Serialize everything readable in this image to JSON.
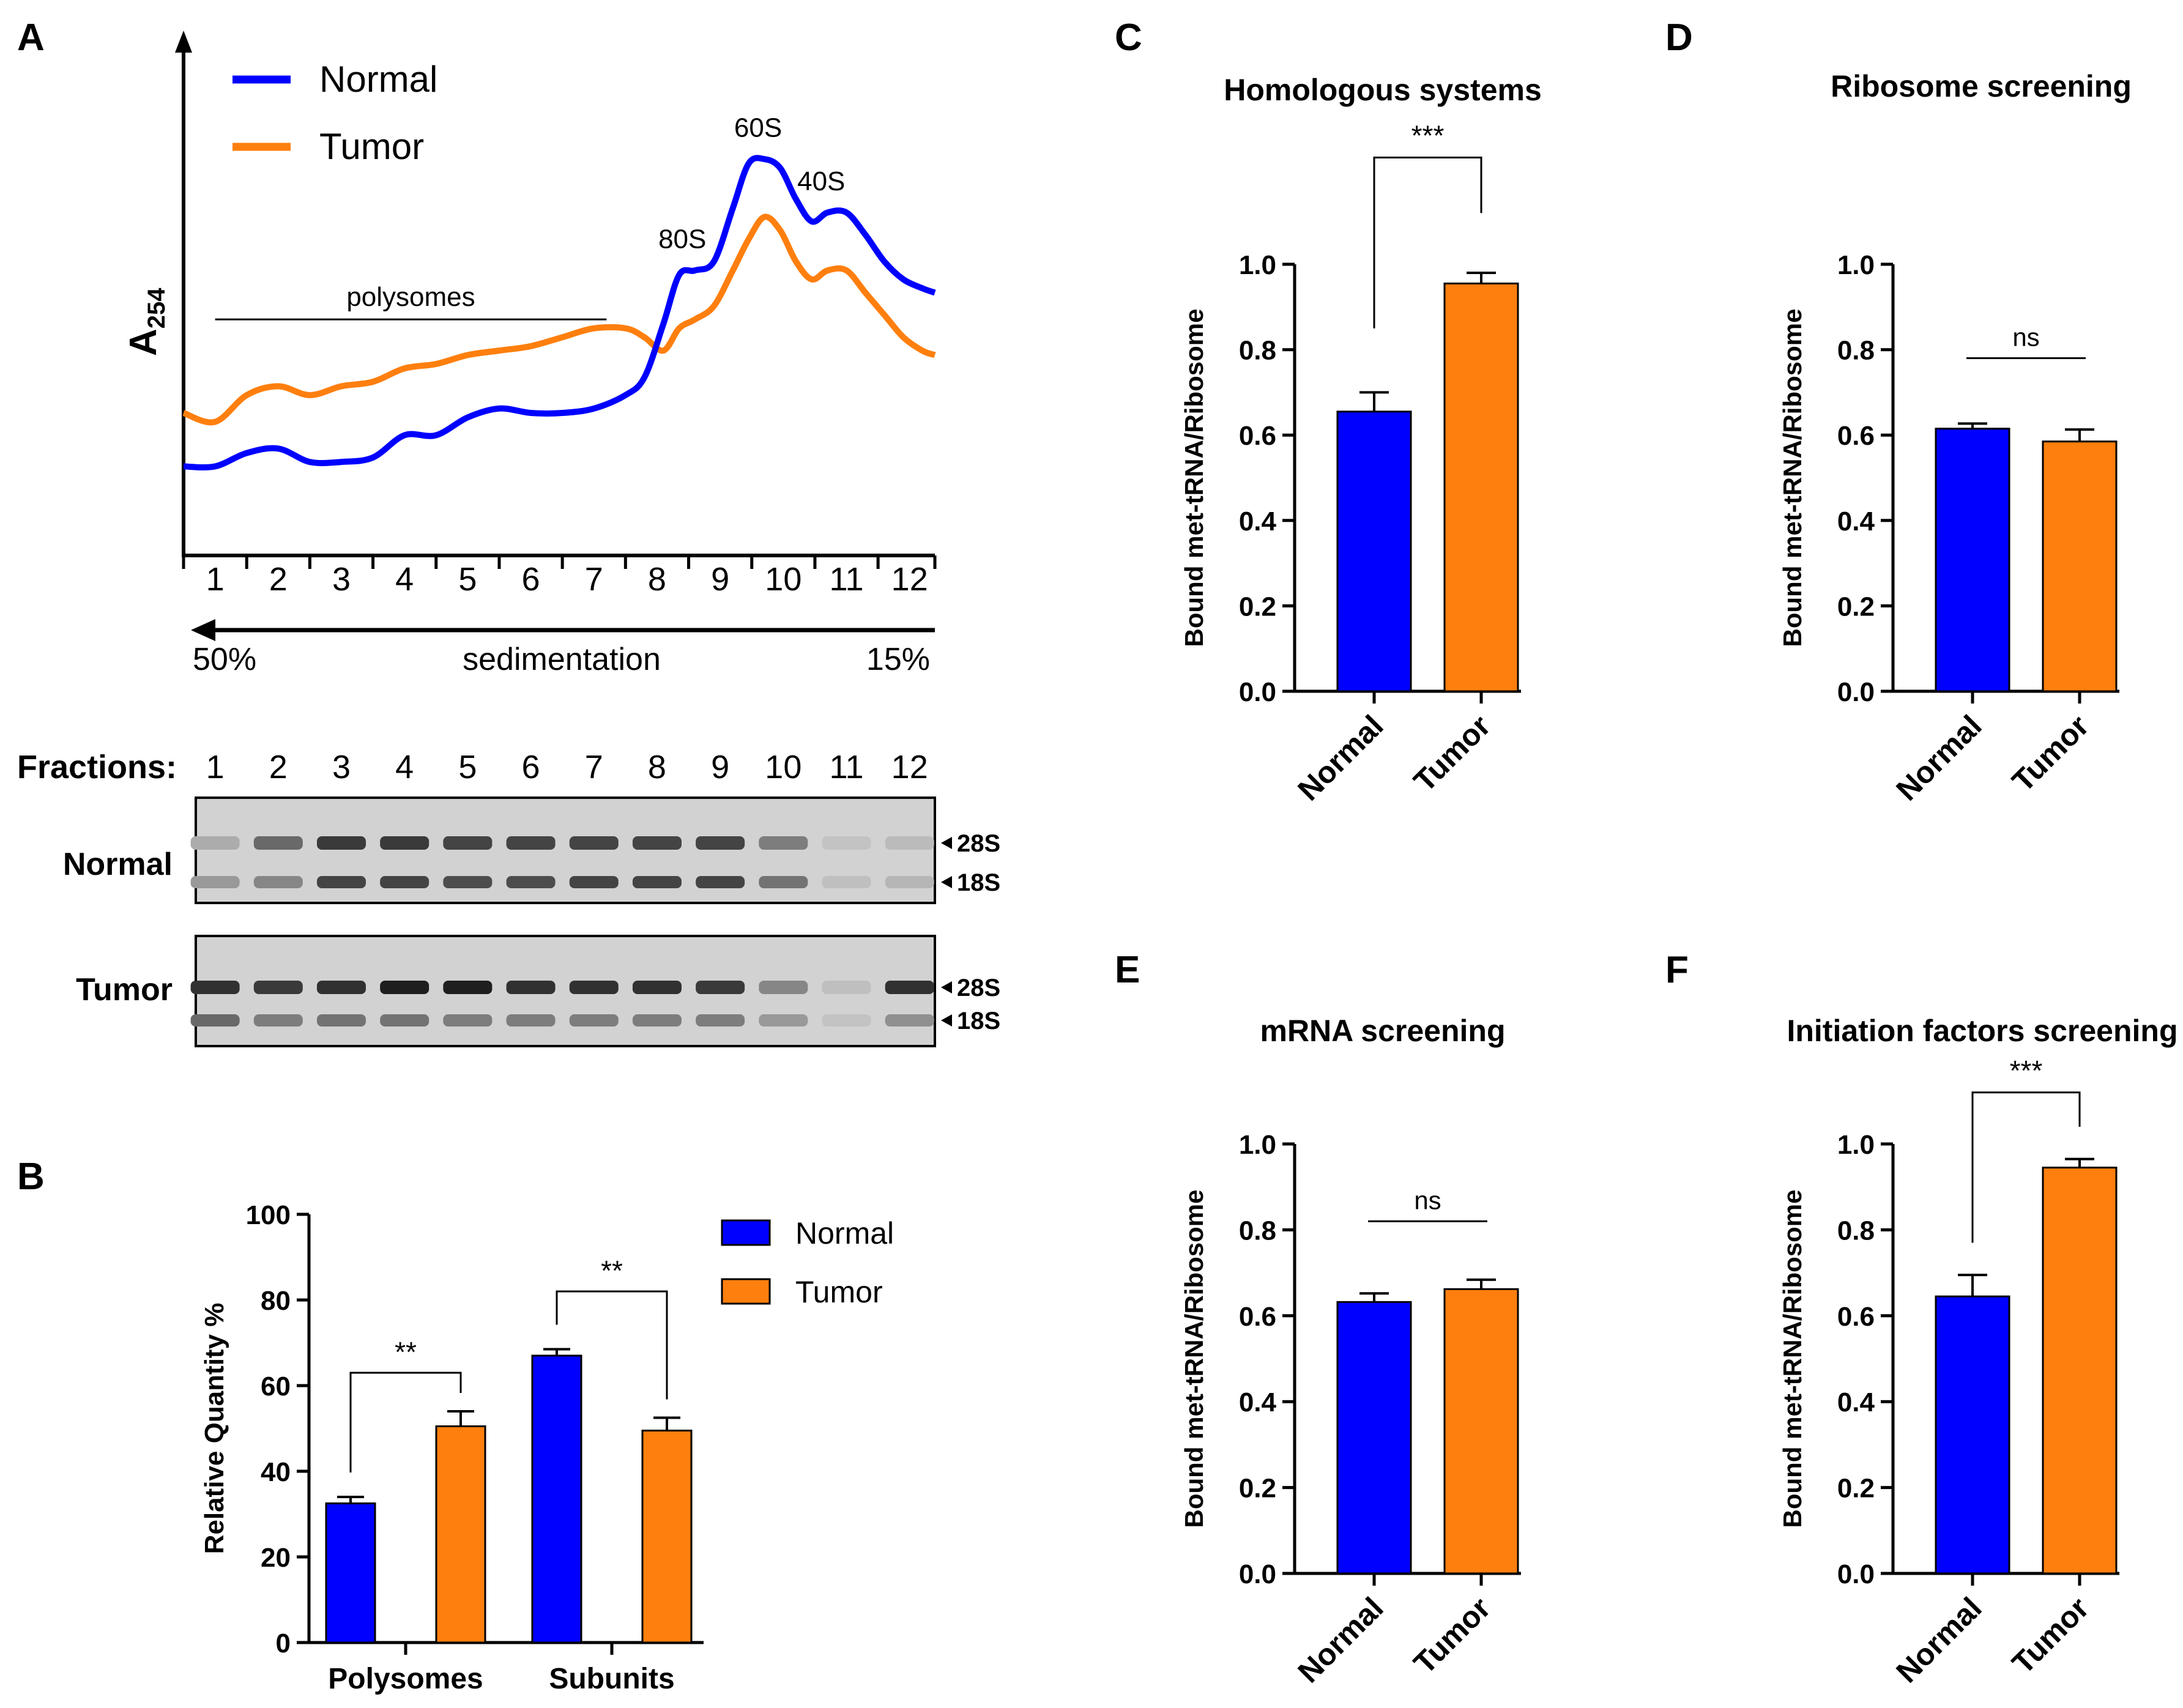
{
  "panel_labels": [
    "A",
    "B",
    "C",
    "D",
    "E",
    "F"
  ],
  "colors": {
    "normal": "#0000ff",
    "tumor": "#ff7f0e",
    "axis": "#000000"
  },
  "chart_data": [
    {
      "id": "A",
      "type": "line",
      "ylabel_main": "A",
      "ylabel_sub": "254",
      "legend": [
        "Normal",
        "Tumor"
      ],
      "legend_position": "top-left",
      "x_ticks": [
        "1",
        "2",
        "3",
        "4",
        "5",
        "6",
        "7",
        "8",
        "9",
        "10",
        "11",
        "12"
      ],
      "xlim": [
        0.5,
        12.4
      ],
      "ylim": [
        0,
        100
      ],
      "series": [
        {
          "name": "Normal",
          "x": [
            0.5,
            1.0,
            1.5,
            2.0,
            2.5,
            3.0,
            3.5,
            4.0,
            4.5,
            5.0,
            5.5,
            6.0,
            6.5,
            7.0,
            7.5,
            7.8,
            8.1,
            8.35,
            8.6,
            8.9,
            9.2,
            9.45,
            9.7,
            9.95,
            10.2,
            10.45,
            10.7,
            11.0,
            11.3,
            11.6,
            11.9,
            12.2,
            12.4
          ],
          "y": [
            20,
            20,
            23,
            24,
            21,
            21,
            22,
            27,
            27,
            31,
            33,
            32,
            32,
            33,
            36,
            40,
            52,
            63,
            64,
            66,
            78,
            88,
            89,
            87,
            80,
            75,
            77,
            77,
            72,
            66,
            62,
            60,
            59
          ]
        },
        {
          "name": "Tumor",
          "x": [
            0.5,
            1.0,
            1.5,
            2.0,
            2.5,
            3.0,
            3.5,
            4.0,
            4.5,
            5.0,
            5.5,
            6.0,
            6.5,
            7.0,
            7.5,
            7.8,
            8.1,
            8.35,
            8.6,
            8.9,
            9.2,
            9.45,
            9.7,
            9.95,
            10.2,
            10.45,
            10.7,
            11.0,
            11.3,
            11.6,
            11.9,
            12.2,
            12.4
          ],
          "y": [
            32,
            30,
            36,
            38,
            36,
            38,
            39,
            42,
            43,
            45,
            46,
            47,
            49,
            51,
            51,
            49,
            46,
            51,
            53,
            56,
            64,
            71,
            76,
            73,
            66,
            62,
            64,
            64,
            59,
            54,
            49,
            46,
            45
          ]
        }
      ],
      "annotations": [
        {
          "text": "polysomes",
          "x_from": 1.0,
          "x_to": 7.2,
          "y": 53
        },
        {
          "text": "80S",
          "x": 8.4,
          "y": 69
        },
        {
          "text": "60S",
          "x": 9.6,
          "y": 94
        },
        {
          "text": "40S",
          "x": 10.6,
          "y": 82
        }
      ],
      "sedimentation": {
        "left": "50%",
        "center": "sedimentation",
        "right": "15%"
      }
    },
    {
      "id": "A-gel",
      "type": "gel",
      "fractions_label": "Fractions:",
      "fractions": [
        "1",
        "2",
        "3",
        "4",
        "5",
        "6",
        "7",
        "8",
        "9",
        "10",
        "11",
        "12"
      ],
      "rows": [
        {
          "name": "Normal",
          "band_labels": [
            "28S",
            "18S"
          ],
          "intensity_28s": [
            0.2,
            0.55,
            0.8,
            0.8,
            0.75,
            0.75,
            0.75,
            0.75,
            0.75,
            0.45,
            0.08,
            0.12
          ],
          "intensity_18s": [
            0.3,
            0.4,
            0.75,
            0.75,
            0.7,
            0.7,
            0.75,
            0.75,
            0.75,
            0.5,
            0.1,
            0.15
          ]
        },
        {
          "name": "Tumor",
          "band_labels": [
            "28S",
            "18S"
          ],
          "intensity_28s": [
            0.85,
            0.8,
            0.85,
            0.95,
            0.95,
            0.85,
            0.85,
            0.85,
            0.8,
            0.4,
            0.1,
            0.85
          ],
          "intensity_18s": [
            0.55,
            0.45,
            0.5,
            0.5,
            0.45,
            0.45,
            0.45,
            0.45,
            0.45,
            0.3,
            0.08,
            0.35
          ]
        }
      ]
    },
    {
      "id": "B",
      "type": "bar",
      "ylabel": "Relative Quantity %",
      "ylim": [
        0,
        100
      ],
      "yticks": [
        "0",
        "20",
        "40",
        "60",
        "80",
        "100"
      ],
      "categories": [
        "Polysomes",
        "Subunits"
      ],
      "series": [
        {
          "name": "Normal",
          "values": [
            32.5,
            67
          ],
          "errors": [
            1.5,
            1.5
          ]
        },
        {
          "name": "Tumor",
          "values": [
            50.5,
            49.5
          ],
          "errors": [
            3.5,
            3.0
          ]
        }
      ],
      "legend": [
        "Normal",
        "Tumor"
      ],
      "legend_position": "top-right",
      "significance": [
        {
          "category": "Polysomes",
          "text": "**",
          "y": 63
        },
        {
          "category": "Subunits",
          "text": "**",
          "y": 82
        }
      ]
    },
    {
      "id": "C",
      "type": "bar",
      "title": "Homologous systems",
      "ylabel": "Bound met-tRNA/Ribosome",
      "ylim": [
        0,
        1.0
      ],
      "yticks": [
        "0.0",
        "0.2",
        "0.4",
        "0.6",
        "0.8",
        "1.0"
      ],
      "categories": [
        "Normal",
        "Tumor"
      ],
      "values": [
        0.655,
        0.955
      ],
      "errors": [
        0.045,
        0.025
      ],
      "significance": {
        "text": "***",
        "y": 1.25,
        "drop": [
          0.85,
          1.12
        ]
      }
    },
    {
      "id": "D",
      "type": "bar",
      "title": "Ribosome screening",
      "ylabel": "Bound met-tRNA/Ribosome",
      "ylim": [
        0,
        1.0
      ],
      "yticks": [
        "0.0",
        "0.2",
        "0.4",
        "0.6",
        "0.8",
        "1.0"
      ],
      "categories": [
        "Normal",
        "Tumor"
      ],
      "values": [
        0.615,
        0.585
      ],
      "errors": [
        0.012,
        0.028
      ],
      "significance": {
        "text": "ns",
        "y": 0.78
      }
    },
    {
      "id": "E",
      "type": "bar",
      "title": "mRNA screening",
      "ylabel": "Bound met-tRNA/Ribosome",
      "ylim": [
        0,
        1.0
      ],
      "yticks": [
        "0.0",
        "0.2",
        "0.4",
        "0.6",
        "0.8",
        "1.0"
      ],
      "categories": [
        "Normal",
        "Tumor"
      ],
      "values": [
        0.632,
        0.662
      ],
      "errors": [
        0.02,
        0.022
      ],
      "significance": {
        "text": "ns",
        "y": 0.82
      }
    },
    {
      "id": "F",
      "type": "bar",
      "title": "Initiation factors screening",
      "ylabel": "Bound met-tRNA/Ribosome",
      "ylim": [
        0,
        1.0
      ],
      "yticks": [
        "0.0",
        "0.2",
        "0.4",
        "0.6",
        "0.8",
        "1.0"
      ],
      "categories": [
        "Normal",
        "Tumor"
      ],
      "values": [
        0.645,
        0.945
      ],
      "errors": [
        0.05,
        0.02
      ],
      "significance": {
        "text": "***",
        "y": 1.12,
        "drop": [
          0.77,
          1.04
        ]
      }
    }
  ]
}
